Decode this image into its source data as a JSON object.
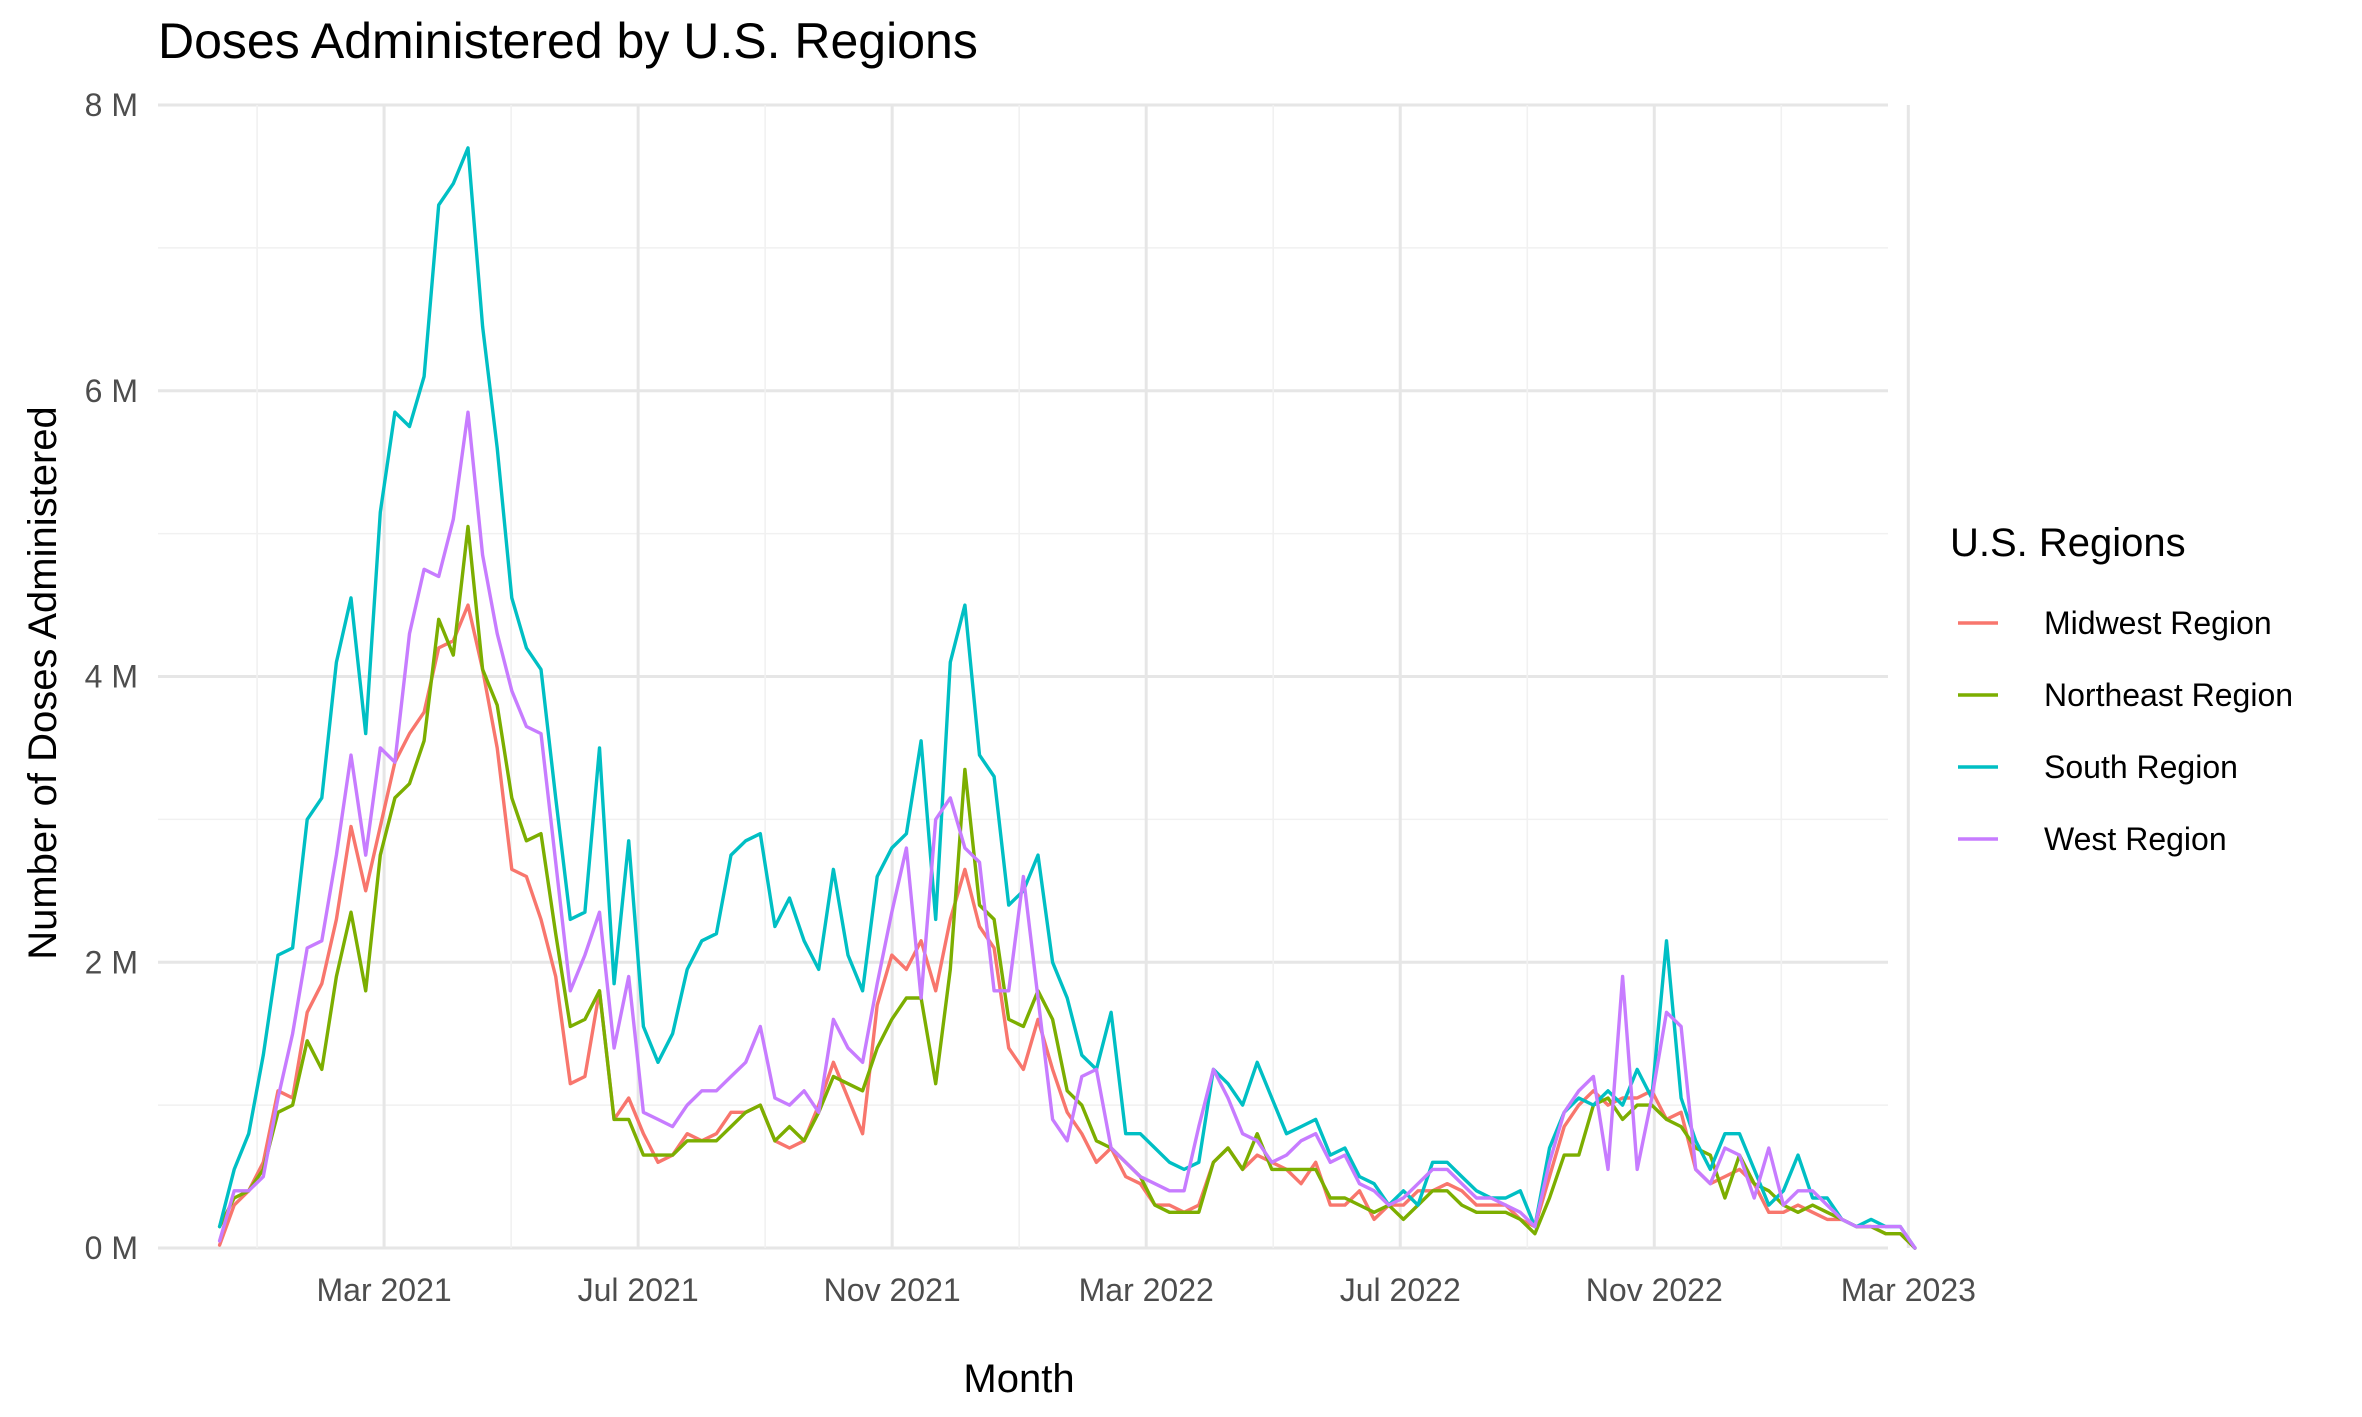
{
  "chart_data": {
    "type": "line",
    "title": "Doses Administered by U.S. Regions",
    "xlabel": "Month",
    "ylabel": "Number of Doses Administered",
    "x_tick_labels": [
      "Mar 2021",
      "Jul 2021",
      "Nov 2021",
      "Mar 2022",
      "Jul 2022",
      "Nov 2022",
      "Mar 2023"
    ],
    "y_tick_labels": [
      "0 M",
      "2 M",
      "4 M",
      "6 M",
      "8 M"
    ],
    "y_ticks": [
      0,
      2,
      4,
      6,
      8
    ],
    "ylim": [
      0,
      8
    ],
    "xlim_months": [
      2020.87,
      2023.14
    ],
    "y_unit": "millions of doses",
    "grid": true,
    "legend_title": "U.S. Regions",
    "legend_position": "right",
    "series": [
      {
        "name": "Midwest Region",
        "color": "#F8766D",
        "x_start": "2020-12-14",
        "x_step_days": 7,
        "values": [
          0.02,
          0.3,
          0.4,
          0.6,
          1.1,
          1.05,
          1.65,
          1.85,
          2.3,
          2.95,
          2.5,
          2.95,
          3.4,
          3.6,
          3.75,
          4.2,
          4.25,
          4.5,
          4.05,
          3.5,
          2.65,
          2.6,
          2.3,
          1.9,
          1.15,
          1.2,
          1.8,
          0.9,
          1.05,
          0.8,
          0.6,
          0.65,
          0.8,
          0.75,
          0.8,
          0.95,
          0.95,
          1.0,
          0.75,
          0.7,
          0.75,
          1.0,
          1.3,
          1.05,
          0.8,
          1.7,
          2.05,
          1.95,
          2.15,
          1.8,
          2.3,
          2.65,
          2.25,
          2.1,
          1.4,
          1.25,
          1.6,
          1.25,
          0.95,
          0.8,
          0.6,
          0.7,
          0.5,
          0.45,
          0.3,
          0.3,
          0.25,
          0.3,
          0.6,
          0.7,
          0.55,
          0.65,
          0.6,
          0.55,
          0.45,
          0.6,
          0.3,
          0.3,
          0.4,
          0.2,
          0.3,
          0.3,
          0.4,
          0.4,
          0.45,
          0.4,
          0.3,
          0.3,
          0.3,
          0.2,
          0.15,
          0.5,
          0.85,
          1.0,
          1.1,
          1.0,
          1.05,
          1.05,
          1.1,
          0.9,
          0.95,
          0.55,
          0.45,
          0.5,
          0.55,
          0.45,
          0.25,
          0.25,
          0.3,
          0.25,
          0.2,
          0.2,
          0.15,
          0.15,
          0.1,
          0.1,
          0.0
        ]
      },
      {
        "name": "Northeast Region",
        "color": "#7CAE00",
        "x_start": "2020-12-14",
        "x_step_days": 7,
        "values": [
          0.15,
          0.35,
          0.4,
          0.55,
          0.95,
          1.0,
          1.45,
          1.25,
          1.9,
          2.35,
          1.8,
          2.75,
          3.15,
          3.25,
          3.55,
          4.4,
          4.15,
          5.05,
          4.05,
          3.8,
          3.15,
          2.85,
          2.9,
          2.2,
          1.55,
          1.6,
          1.8,
          0.9,
          0.9,
          0.65,
          0.65,
          0.65,
          0.75,
          0.75,
          0.75,
          0.85,
          0.95,
          1.0,
          0.75,
          0.85,
          0.75,
          0.95,
          1.2,
          1.15,
          1.1,
          1.4,
          1.6,
          1.75,
          1.75,
          1.15,
          1.95,
          3.35,
          2.4,
          2.3,
          1.6,
          1.55,
          1.8,
          1.6,
          1.1,
          1.0,
          0.75,
          0.7,
          0.6,
          0.5,
          0.3,
          0.25,
          0.25,
          0.25,
          0.6,
          0.7,
          0.55,
          0.8,
          0.55,
          0.55,
          0.55,
          0.55,
          0.35,
          0.35,
          0.3,
          0.25,
          0.3,
          0.2,
          0.3,
          0.4,
          0.4,
          0.3,
          0.25,
          0.25,
          0.25,
          0.2,
          0.1,
          0.35,
          0.65,
          0.65,
          1.0,
          1.05,
          0.9,
          1.0,
          1.0,
          0.9,
          0.85,
          0.7,
          0.65,
          0.35,
          0.65,
          0.45,
          0.4,
          0.3,
          0.25,
          0.3,
          0.25,
          0.2,
          0.15,
          0.15,
          0.1,
          0.1,
          0.0
        ]
      },
      {
        "name": "South Region",
        "color": "#00BFC4",
        "x_start": "2020-12-14",
        "x_step_days": 7,
        "values": [
          0.15,
          0.55,
          0.8,
          1.35,
          2.05,
          2.1,
          3.0,
          3.15,
          4.1,
          4.55,
          3.6,
          5.15,
          5.85,
          5.75,
          6.1,
          7.3,
          7.45,
          7.7,
          6.45,
          5.6,
          4.55,
          4.2,
          4.05,
          3.15,
          2.3,
          2.35,
          3.5,
          1.85,
          2.85,
          1.55,
          1.3,
          1.5,
          1.95,
          2.15,
          2.2,
          2.75,
          2.85,
          2.9,
          2.25,
          2.45,
          2.15,
          1.95,
          2.65,
          2.05,
          1.8,
          2.6,
          2.8,
          2.9,
          3.55,
          2.3,
          4.1,
          4.5,
          3.45,
          3.3,
          2.4,
          2.5,
          2.75,
          2.0,
          1.75,
          1.35,
          1.25,
          1.65,
          0.8,
          0.8,
          0.7,
          0.6,
          0.55,
          0.6,
          1.25,
          1.15,
          1.0,
          1.3,
          1.05,
          0.8,
          0.85,
          0.9,
          0.65,
          0.7,
          0.5,
          0.45,
          0.3,
          0.4,
          0.3,
          0.6,
          0.6,
          0.5,
          0.4,
          0.35,
          0.35,
          0.4,
          0.15,
          0.7,
          0.95,
          1.05,
          1.0,
          1.1,
          1.0,
          1.25,
          1.05,
          2.15,
          1.05,
          0.75,
          0.55,
          0.8,
          0.8,
          0.55,
          0.3,
          0.4,
          0.65,
          0.35,
          0.35,
          0.2,
          0.15,
          0.2,
          0.15,
          0.15,
          0.0
        ]
      },
      {
        "name": "West Region",
        "color": "#C77CFF",
        "x_start": "2020-12-14",
        "x_step_days": 7,
        "values": [
          0.05,
          0.4,
          0.4,
          0.5,
          1.05,
          1.5,
          2.1,
          2.15,
          2.75,
          3.45,
          2.75,
          3.5,
          3.4,
          4.3,
          4.75,
          4.7,
          5.1,
          5.85,
          4.85,
          4.3,
          3.9,
          3.65,
          3.6,
          2.7,
          1.8,
          2.05,
          2.35,
          1.4,
          1.9,
          0.95,
          0.9,
          0.85,
          1.0,
          1.1,
          1.1,
          1.2,
          1.3,
          1.55,
          1.05,
          1.0,
          1.1,
          0.95,
          1.6,
          1.4,
          1.3,
          1.85,
          2.35,
          2.8,
          1.75,
          3.0,
          3.15,
          2.8,
          2.7,
          1.8,
          1.8,
          2.6,
          1.75,
          0.9,
          0.75,
          1.2,
          1.25,
          0.7,
          0.6,
          0.5,
          0.45,
          0.4,
          0.4,
          0.85,
          1.25,
          1.05,
          0.8,
          0.75,
          0.6,
          0.65,
          0.75,
          0.8,
          0.6,
          0.65,
          0.45,
          0.4,
          0.3,
          0.35,
          0.45,
          0.55,
          0.55,
          0.45,
          0.35,
          0.35,
          0.3,
          0.25,
          0.15,
          0.6,
          0.95,
          1.1,
          1.2,
          0.55,
          1.9,
          0.55,
          1.05,
          1.65,
          1.55,
          0.55,
          0.45,
          0.7,
          0.65,
          0.35,
          0.7,
          0.3,
          0.4,
          0.4,
          0.3,
          0.2,
          0.15,
          0.15,
          0.15,
          0.15,
          0.0
        ]
      }
    ]
  }
}
